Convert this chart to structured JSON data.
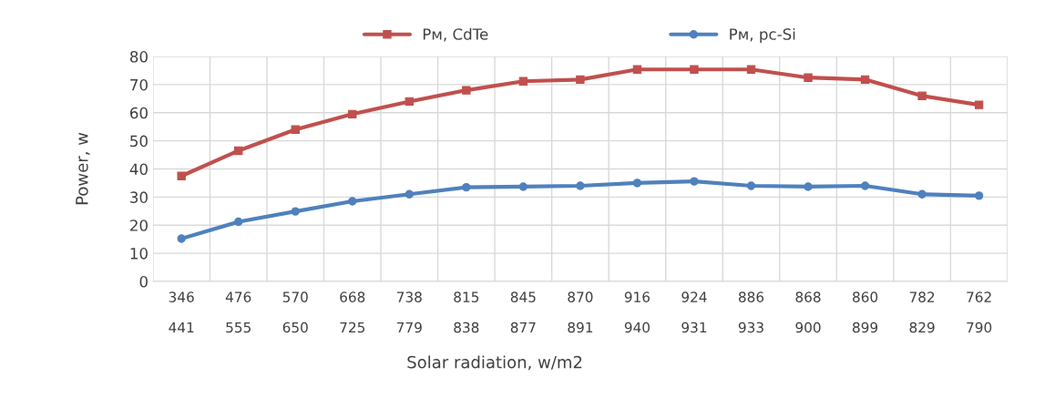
{
  "chart_data": {
    "type": "line",
    "xlabel": "Solar radiation, w/m2",
    "ylabel": "Power, w",
    "categories": [
      "346\n441",
      "476\n555",
      "570\n650",
      "668\n725",
      "738\n779",
      "815\n838",
      "845\n877",
      "870\n891",
      "916\n940",
      "924\n931",
      "886\n933",
      "868\n900",
      "860\n899",
      "782\n829",
      "762\n790"
    ],
    "series": [
      {
        "name": "Pм, CdTe",
        "color": "#c0504d",
        "marker": "square",
        "values": [
          37.5,
          46.5,
          54,
          59.5,
          64,
          68,
          71.2,
          71.8,
          75.4,
          75.4,
          75.4,
          72.5,
          71.8,
          66,
          62.8
        ]
      },
      {
        "name": "Pм, pc-Si",
        "color": "#4f81bd",
        "marker": "circle",
        "values": [
          15.2,
          21.2,
          24.9,
          28.5,
          31,
          33.5,
          33.7,
          34,
          35,
          35.6,
          34,
          33.7,
          34,
          31,
          30.5
        ]
      }
    ],
    "ylim": [
      0,
      80
    ],
    "yticks": [
      0,
      10,
      20,
      30,
      40,
      50,
      60,
      70,
      80
    ],
    "grid": true,
    "legend": "top"
  }
}
